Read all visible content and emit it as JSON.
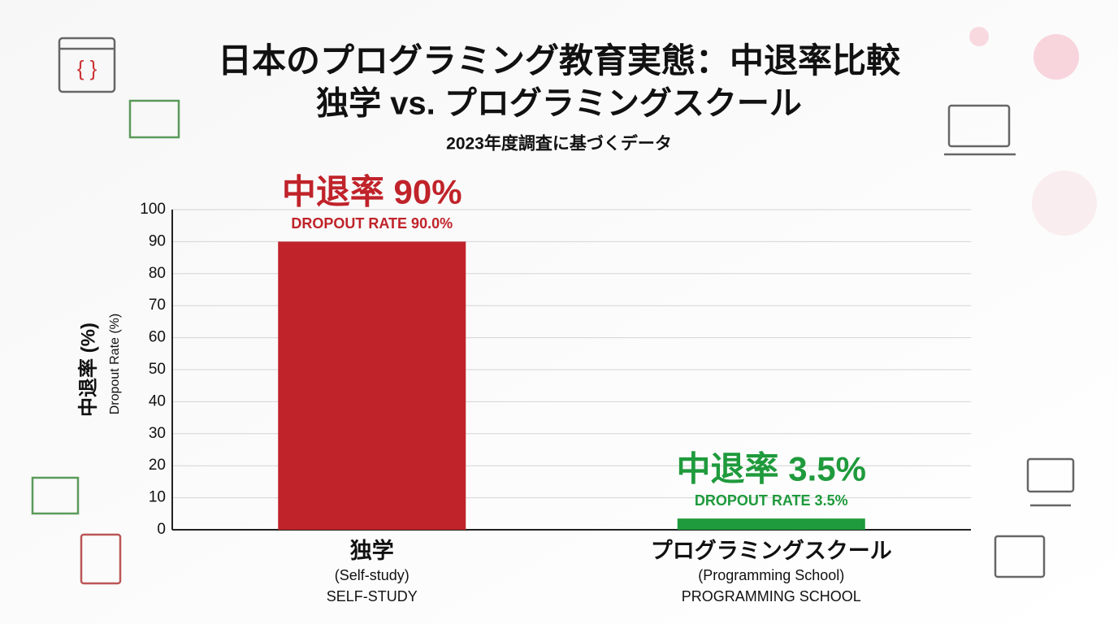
{
  "chart_data": {
    "type": "bar",
    "title": "日本のプログラミング教育実態：中退率比較",
    "subtitle": "独学 vs. プログラミングスクール",
    "note": "2023年度調査に基づくデータ",
    "ylabel": "中退率 (%)",
    "ylabel_en": "Dropout Rate (%)",
    "categories": [
      "独学",
      "プログラミングスクール"
    ],
    "categories_en": [
      "(Self-study)",
      "(Programming School)"
    ],
    "categories_upper": [
      "SELF-STUDY",
      "PROGRAMMING SCHOOL"
    ],
    "values": [
      90,
      3.5
    ],
    "value_labels": [
      "中退率 90%",
      "中退率 3.5%"
    ],
    "value_labels_en": [
      "DROPOUT RATE 90.0%",
      "DROPOUT RATE 3.5%"
    ],
    "colors": [
      "#c0232a",
      "#1f9a3c"
    ],
    "ylim": [
      0,
      100
    ],
    "yticks": [
      0,
      10,
      20,
      30,
      40,
      50,
      60,
      70,
      80,
      90,
      100
    ],
    "grid": true
  }
}
